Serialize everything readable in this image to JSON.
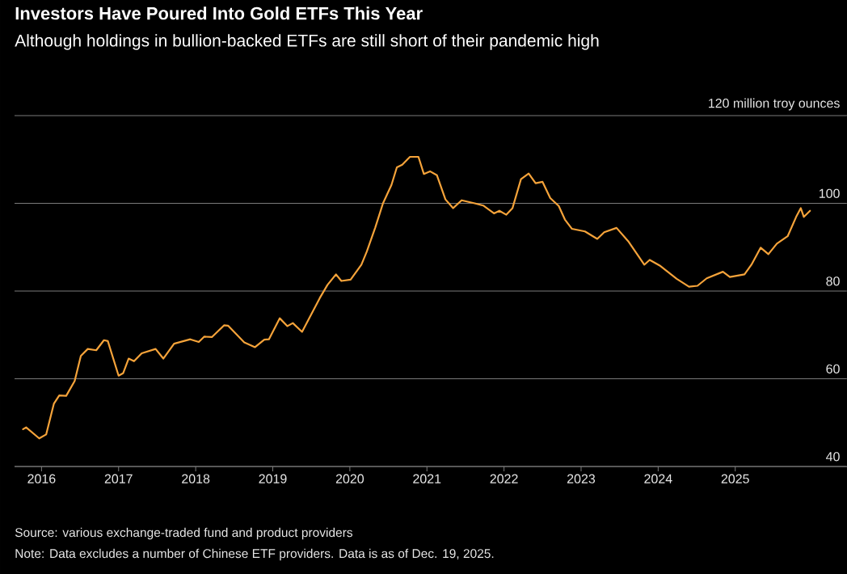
{
  "chart_data": {
    "type": "line",
    "title": "Investors Have Poured Into Gold ETFs This Year",
    "subtitle": "Although holdings in bullion-backed ETFs are still short of their pandemic high",
    "x": [
      2015.76,
      2015.8,
      2015.97,
      2016.06,
      2016.16,
      2016.23,
      2016.32,
      2016.43,
      2016.51,
      2016.6,
      2016.71,
      2016.81,
      2016.86,
      2017.0,
      2017.06,
      2017.13,
      2017.2,
      2017.3,
      2017.48,
      2017.58,
      2017.72,
      2017.93,
      2018.04,
      2018.11,
      2018.21,
      2018.37,
      2018.42,
      2018.63,
      2018.77,
      2018.89,
      2018.95,
      2019.09,
      2019.19,
      2019.26,
      2019.38,
      2019.61,
      2019.71,
      2019.82,
      2019.89,
      2020.01,
      2020.15,
      2020.22,
      2020.33,
      2020.43,
      2020.54,
      2020.61,
      2020.68,
      2020.78,
      2020.89,
      2020.96,
      2021.04,
      2021.13,
      2021.24,
      2021.34,
      2021.45,
      2021.62,
      2021.73,
      2021.87,
      2021.94,
      2022.03,
      2022.11,
      2022.22,
      2022.32,
      2022.41,
      2022.5,
      2022.6,
      2022.71,
      2022.79,
      2022.88,
      2023.05,
      2023.21,
      2023.3,
      2023.46,
      2023.61,
      2023.82,
      2023.89,
      2024.03,
      2024.24,
      2024.4,
      2024.51,
      2024.63,
      2024.84,
      2024.93,
      2025.12,
      2025.21,
      2025.33,
      2025.43,
      2025.54,
      2025.68,
      2025.79,
      2025.85,
      2025.89,
      2025.97
    ],
    "series": [
      {
        "color": "#f5a33a",
        "values": [
          48.5,
          48.9,
          46.4,
          47.3,
          54.3,
          56.2,
          56.1,
          59.5,
          65.2,
          66.8,
          66.5,
          68.8,
          68.6,
          60.7,
          61.3,
          64.6,
          64.0,
          65.8,
          66.8,
          64.6,
          68.0,
          69.0,
          68.4,
          69.6,
          69.5,
          72.2,
          72.1,
          68.3,
          67.2,
          68.9,
          69.0,
          73.8,
          72.0,
          72.7,
          70.7,
          78.4,
          81.4,
          83.8,
          82.3,
          82.6,
          86.0,
          89.0,
          94.5,
          100.0,
          104.2,
          108.2,
          108.8,
          110.6,
          110.6,
          106.7,
          107.3,
          106.4,
          100.9,
          98.9,
          100.7,
          100.0,
          99.5,
          97.7,
          98.3,
          97.4,
          98.9,
          105.5,
          106.8,
          104.6,
          104.9,
          101.2,
          99.4,
          96.3,
          94.2,
          93.6,
          91.9,
          93.4,
          94.4,
          91.4,
          86.0,
          87.1,
          85.7,
          82.8,
          81.0,
          81.2,
          82.9,
          84.4,
          83.2,
          83.8,
          86.0,
          89.9,
          88.4,
          90.8,
          92.5,
          96.9,
          98.9,
          96.9,
          98.3
        ]
      }
    ],
    "xlim": [
      2015.65,
      2026.45
    ],
    "xticks": [
      2016,
      2017,
      2018,
      2019,
      2020,
      2021,
      2022,
      2023,
      2024,
      2025
    ],
    "ylim": [
      40,
      120
    ],
    "yticks": [
      40,
      60,
      80,
      100,
      {
        "value": 120,
        "label": "120 million troy ounces"
      }
    ],
    "grid": "y",
    "annotations": [
      "Source: various exchange-traded fund and product providers",
      "Note: Data excludes a number of Chinese ETF providers. Data is as of Dec. 19, 2025."
    ]
  }
}
